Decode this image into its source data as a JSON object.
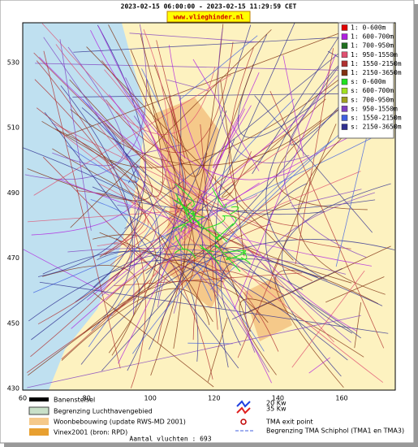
{
  "header": {
    "title": "2023-02-15 06:00:00 - 2023-02-15 11:29:59 CET",
    "site": "www.vlieghinder.nl"
  },
  "axes": {
    "y": [
      "530",
      "510",
      "490",
      "470",
      "450",
      "430"
    ],
    "x": [
      "60",
      "80",
      "100",
      "120",
      "140",
      "160"
    ]
  },
  "legend": [
    {
      "label": "1: 0-600m",
      "color": "#e00000"
    },
    {
      "label": "1: 600-700m",
      "color": "#b020e0"
    },
    {
      "label": "1: 700-950m",
      "color": "#207020"
    },
    {
      "label": "1: 950-1550m",
      "color": "#e05070"
    },
    {
      "label": "1: 1550-2150m",
      "color": "#b03030"
    },
    {
      "label": "1: 2150-3650m",
      "color": "#803010"
    },
    {
      "label": "s: 0-600m",
      "color": "#20e020"
    },
    {
      "label": "s: 600-700m",
      "color": "#a0e020"
    },
    {
      "label": "s: 700-950m",
      "color": "#a0a020"
    },
    {
      "label": "s: 950-1550m",
      "color": "#8040c0"
    },
    {
      "label": "s: 1550-2150m",
      "color": "#4060e0"
    },
    {
      "label": "s: 2150-3650m",
      "color": "#303090"
    }
  ],
  "map_legend": {
    "runways": "Banenstelsel",
    "airport": "Begrenzing Luchthavengebied",
    "housing": "Woonbebouwing (update RWS-MD 2001)",
    "vinex": "Vinex2001 (bron: RPD)",
    "kw20": "20 Kw",
    "kw35": "35 Kw",
    "tma_exit": "TMA exit point",
    "tma": "Begrenzing TMA Schiphol  (TMA1 en TMA3)"
  },
  "footer": {
    "count": "Aantal vluchten : 693"
  }
}
